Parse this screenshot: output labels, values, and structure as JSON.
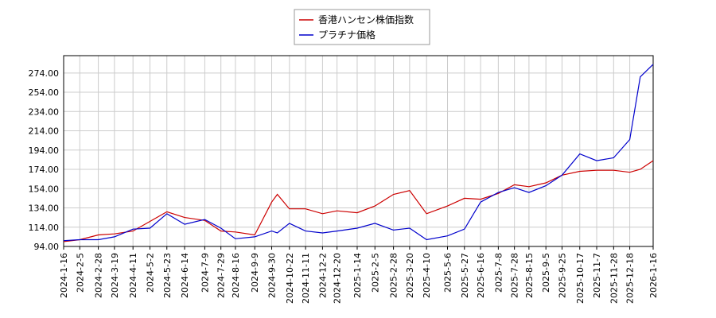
{
  "chart_data": {
    "type": "line",
    "x": [
      "2024-1-16",
      "2024-2-5",
      "2024-2-28",
      "2024-3-19",
      "2024-4-11",
      "2024-5-2",
      "2024-5-23",
      "2024-6-14",
      "2024-7-9",
      "2024-7-29",
      "2024-8-16",
      "2024-9-9",
      "2024-9-30",
      "2024-10-7",
      "2024-10-22",
      "2024-11-11",
      "2024-12-2",
      "2024-12-20",
      "2025-1-14",
      "2025-2-5",
      "2025-2-28",
      "2025-3-20",
      "2025-4-10",
      "2025-5-6",
      "2025-5-27",
      "2025-6-16",
      "2025-7-8",
      "2025-7-28",
      "2025-8-15",
      "2025-9-5",
      "2025-9-25",
      "2025-10-17",
      "2025-11-7",
      "2025-11-28",
      "2025-12-18",
      "2025-12-31",
      "2026-1-16"
    ],
    "series": [
      {
        "name": "香港ハンセン株価指数",
        "color": "#cc0000",
        "values": [
          99,
          101,
          106,
          107,
          110,
          120,
          130,
          124,
          121,
          110,
          109,
          106,
          140,
          148,
          133,
          133,
          128,
          131,
          129,
          136,
          148,
          152,
          128,
          136,
          144,
          143,
          149,
          158,
          156,
          160,
          168,
          172,
          173,
          173,
          171,
          174,
          183
        ]
      },
      {
        "name": "プラチナ価格",
        "color": "#0000cc",
        "values": [
          100,
          101,
          101,
          104,
          112,
          113,
          128,
          117,
          122,
          113,
          102,
          104,
          110,
          108,
          118,
          110,
          108,
          110,
          113,
          118,
          111,
          113,
          101,
          105,
          112,
          140,
          150,
          155,
          150,
          157,
          168,
          190,
          183,
          186,
          205,
          270,
          283
        ]
      }
    ],
    "xlim": [
      "2024-1-16",
      "2026-1-16"
    ],
    "xticks": [
      "2024-1-16",
      "2024-2-5",
      "2024-2-28",
      "2024-3-19",
      "2024-4-11",
      "2024-5-2",
      "2024-5-23",
      "2024-6-14",
      "2024-7-9",
      "2024-7-29",
      "2024-8-16",
      "2024-9-9",
      "2024-9-30",
      "2024-10-22",
      "2024-11-11",
      "2024-12-2",
      "2024-12-20",
      "2025-1-14",
      "2025-2-5",
      "2025-2-28",
      "2025-3-20",
      "2025-4-10",
      "2025-5-6",
      "2025-5-27",
      "2025-6-16",
      "2025-7-8",
      "2025-7-28",
      "2025-8-15",
      "2025-9-5",
      "2025-9-25",
      "2025-10-17",
      "2025-11-7",
      "2025-11-28",
      "2025-12-18",
      "2026-1-16"
    ],
    "ylim": [
      94,
      292
    ],
    "yticks": [
      {
        "value": 94,
        "label": "94.00"
      },
      {
        "value": 114,
        "label": "114.00"
      },
      {
        "value": 134,
        "label": "134.00"
      },
      {
        "value": 154,
        "label": "154.00"
      },
      {
        "value": 174,
        "label": "174.00"
      },
      {
        "value": 194,
        "label": "194.00"
      },
      {
        "value": 214,
        "label": "214.00"
      },
      {
        "value": 234,
        "label": "234.00"
      },
      {
        "value": 254,
        "label": "254.00"
      },
      {
        "value": 274,
        "label": "274.00"
      }
    ],
    "grid": true,
    "legend": "top"
  }
}
